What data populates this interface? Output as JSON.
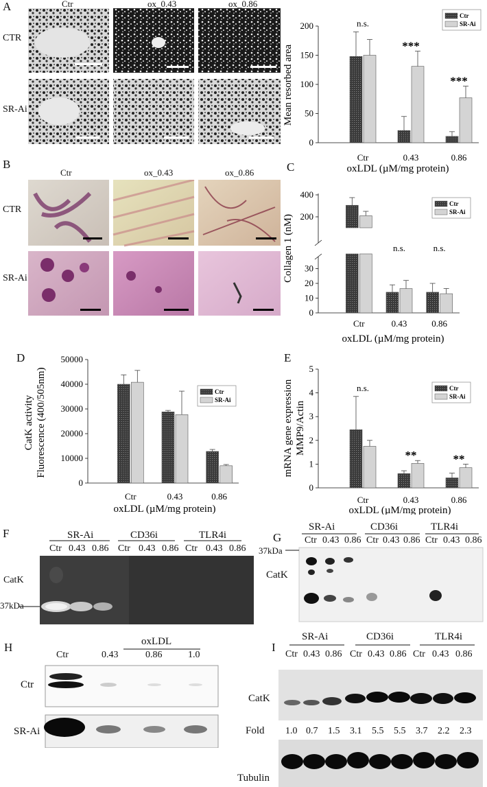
{
  "panels": {
    "A": {
      "letter": "A",
      "col_labels": [
        "Ctr",
        "ox_0.43",
        "ox_0.86"
      ],
      "row_labels": [
        "CTR",
        "SR-Ai"
      ]
    },
    "B": {
      "letter": "B",
      "col_labels": [
        "Ctr",
        "ox_0.43",
        "ox_0.86"
      ],
      "row_labels": [
        "CTR",
        "SR-Ai"
      ]
    },
    "C": {
      "letter": "C"
    },
    "D": {
      "letter": "D"
    },
    "E": {
      "letter": "E"
    },
    "F": {
      "letter": "F",
      "groups": [
        "SR-Ai",
        "CD36i",
        "TLR4i"
      ],
      "lanes": [
        "Ctr",
        "0.43",
        "0.86",
        "Ctr",
        "0.43",
        "0.86",
        "Ctr",
        "0.43",
        "0.86"
      ],
      "band_label": "CatK",
      "mw_label": "37kDa"
    },
    "G": {
      "letter": "G",
      "groups": [
        "SR-Ai",
        "CD36i",
        "TLR4i"
      ],
      "lanes": [
        "Ctr",
        "0.43",
        "0.86",
        "Ctr",
        "0.43",
        "0.86",
        "Ctr",
        "0.43",
        "0.86"
      ],
      "band_label": "CatK",
      "mw_label": "37kDa"
    },
    "H": {
      "letter": "H",
      "group": "oxLDL",
      "lanes": [
        "Ctr",
        "0.43",
        "0.86",
        "1.0"
      ],
      "row_labels": [
        "Ctr",
        "SR-Ai"
      ]
    },
    "I": {
      "letter": "I",
      "groups": [
        "SR-Ai",
        "CD36i",
        "TLR4i"
      ],
      "lanes": [
        "Ctr",
        "0.43",
        "0.86",
        "Ctr",
        "0.43",
        "0.86",
        "Ctr",
        "0.43",
        "0.86"
      ],
      "band_label": "CatK",
      "fold_label": "Fold",
      "fold_values": [
        "1.0",
        "0.7",
        "1.5",
        "3.1",
        "5.5",
        "5.5",
        "3.7",
        "2.2",
        "2.3"
      ],
      "loading_label": "Tubulin"
    }
  },
  "chart_data": [
    {
      "panel": "A",
      "type": "bar",
      "categories": [
        "Ctr",
        "0.43",
        "0.86"
      ],
      "series": [
        {
          "name": "Ctr",
          "values": [
            148,
            21,
            11
          ],
          "errors": [
            42,
            24,
            8
          ],
          "color": "#4a4a4a"
        },
        {
          "name": "SR-Ai",
          "values": [
            150,
            131,
            77
          ],
          "errors": [
            27,
            26,
            20
          ],
          "color": "#cfcfcf"
        }
      ],
      "annotations": [
        "n.s.",
        "***",
        "***"
      ],
      "xlabel": "oxLDL (µM/mg protein)",
      "ylabel": "Mean resorbed area",
      "ylim": [
        0,
        200
      ],
      "yticks": [
        "0",
        "50",
        "100",
        "150",
        "200"
      ]
    },
    {
      "panel": "C",
      "type": "bar",
      "categories": [
        "Ctr",
        "0.43",
        "0.86"
      ],
      "series": [
        {
          "name": "Ctr",
          "values": [
            305,
            14,
            14
          ],
          "errors": [
            70,
            5,
            6
          ],
          "color": "#4a4a4a"
        },
        {
          "name": "SR-Ai",
          "values": [
            210,
            16.5,
            13
          ],
          "errors": [
            40,
            5.5,
            3.5
          ],
          "color": "#cfcfcf"
        }
      ],
      "annotations": [
        "",
        "n.s.",
        "n.s."
      ],
      "xlabel": "oxLDL (µM/mg protein)",
      "ylabel": "Collagen 1 (nM)",
      "axis_break": true,
      "ylim_lower": [
        0,
        40
      ],
      "ylim_upper": [
        100,
        400
      ],
      "yticks": [
        "0",
        "10",
        "20",
        "30",
        "200",
        "400"
      ]
    },
    {
      "panel": "D",
      "type": "bar",
      "categories": [
        "Ctr",
        "0.43",
        "0.86"
      ],
      "series": [
        {
          "name": "Ctr",
          "values": [
            40000,
            28800,
            12800
          ],
          "errors": [
            3800,
            600,
            800
          ],
          "color": "#4a4a4a"
        },
        {
          "name": "SR-Ai",
          "values": [
            40800,
            27700,
            7000
          ],
          "errors": [
            4800,
            9500,
            500
          ],
          "color": "#cfcfcf"
        }
      ],
      "xlabel": "oxLDL (µM/mg protein)",
      "ylabel": "CatK activity Fluorescence (400/505nm)",
      "ylabel_lines": [
        "CatK activity",
        "Fluorescence (400/505nm)"
      ],
      "ylim": [
        0,
        50000
      ],
      "yticks": [
        "0",
        "10000",
        "20000",
        "30000",
        "40000",
        "50000"
      ]
    },
    {
      "panel": "E",
      "type": "bar",
      "categories": [
        "Ctr",
        "0.43",
        "0.86"
      ],
      "series": [
        {
          "name": "Ctr",
          "values": [
            2.45,
            0.6,
            0.42
          ],
          "errors": [
            1.4,
            0.12,
            0.2
          ],
          "color": "#4a4a4a"
        },
        {
          "name": "SR-Ai",
          "values": [
            1.75,
            1.03,
            0.85
          ],
          "errors": [
            0.25,
            0.12,
            0.15
          ],
          "color": "#cfcfcf"
        }
      ],
      "annotations": [
        "n.s.",
        "**",
        "**"
      ],
      "xlabel": "oxLDL (µM/mg protein)",
      "ylabel": "mRNA gene expression MMP9/Actin",
      "ylabel_lines": [
        "mRNA gene expression",
        "MMP9/Actin"
      ],
      "ylim": [
        0,
        5
      ],
      "yticks": [
        "0",
        "1",
        "2",
        "3",
        "4",
        "5"
      ]
    }
  ]
}
